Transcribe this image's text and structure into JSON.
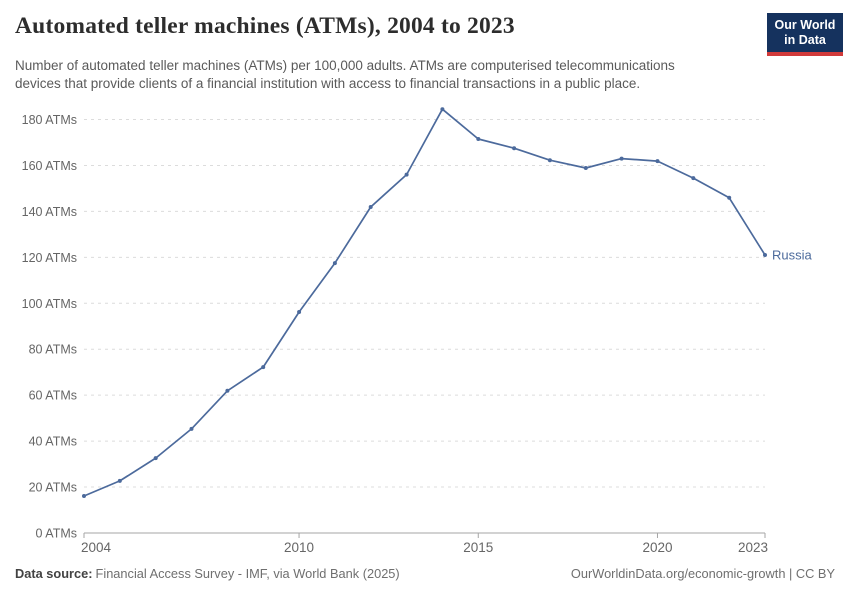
{
  "header": {
    "logo": {
      "line1": "Our World",
      "line2": "in Data",
      "bg_color": "#15325e",
      "stripe_color": "#d13a3a"
    }
  },
  "chart_data": {
    "type": "line",
    "title": "Automated teller machines (ATMs), 2004 to 2023",
    "subtitle_lines": [
      "Number of automated teller machines (ATMs) per 100,000 adults. ATMs are computerised telecommunications",
      "devices that provide clients of a financial institution with access to financial transactions in a public place."
    ],
    "x": [
      2004,
      2005,
      2006,
      2007,
      2008,
      2009,
      2010,
      2011,
      2012,
      2013,
      2014,
      2015,
      2016,
      2017,
      2018,
      2019,
      2020,
      2021,
      2022,
      2023
    ],
    "series": [
      {
        "name": "Russia",
        "color": "#4C6A9C",
        "values": [
          16.1,
          22.7,
          32.6,
          45.3,
          61.9,
          72.2,
          96.2,
          117.5,
          141.9,
          156.0,
          184.5,
          171.5,
          167.5,
          162.3,
          158.9,
          163.0,
          161.9,
          154.5,
          145.9,
          121.0
        ]
      }
    ],
    "x_ticks": [
      2004,
      2010,
      2015,
      2020,
      2023
    ],
    "y_ticks": [
      0,
      20,
      40,
      60,
      80,
      100,
      120,
      140,
      160,
      180
    ],
    "y_tick_suffix": " ATMs",
    "xlim": [
      2004,
      2023
    ],
    "ylim": [
      0,
      180
    ],
    "grid": "horizontal-dashed",
    "grid_color": "#dcdcdc",
    "axis_color": "#a5a5a5",
    "legend": "line-end-label"
  },
  "footer": {
    "datasource_label": "Data source:",
    "datasource_text": "Financial Access Survey - IMF, via World Bank (2025)",
    "credit": "OurWorldinData.org/economic-growth | CC BY"
  }
}
